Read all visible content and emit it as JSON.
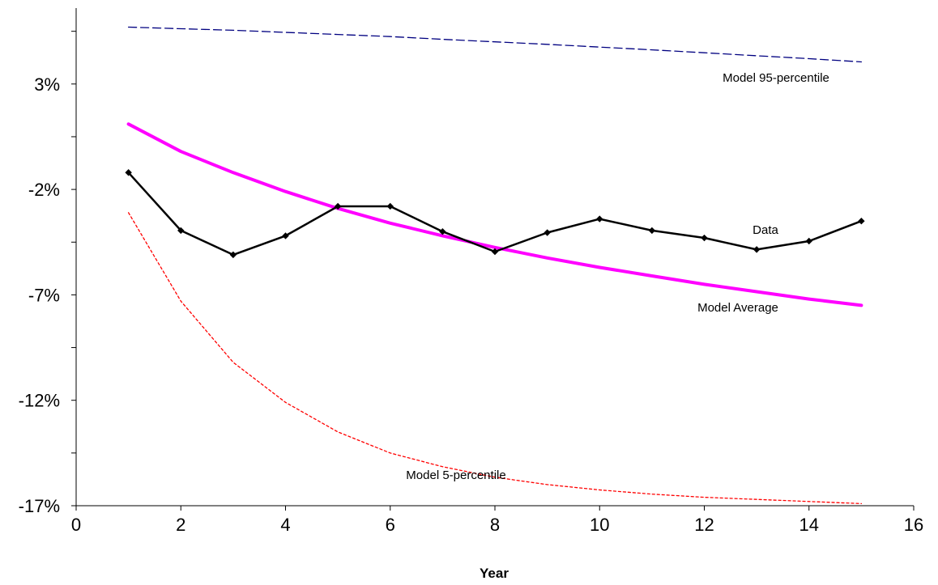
{
  "chart_data": {
    "type": "line",
    "title": "",
    "xlabel": "Year",
    "ylabel": "",
    "xlim": [
      0,
      16
    ],
    "ylim": [
      -17,
      6.6
    ],
    "x_ticks": [
      0,
      2,
      4,
      6,
      8,
      10,
      12,
      14,
      16
    ],
    "x_tick_labels": [
      "0",
      "2",
      "4",
      "6",
      "8",
      "10",
      "12",
      "14",
      "16"
    ],
    "y_ticks": [
      3,
      -2,
      -7,
      -12,
      -17
    ],
    "y_tick_labels": [
      "3%",
      "-2%",
      "-7%",
      "-12%",
      "-17%"
    ],
    "y_minor_ticks": [
      5.5,
      0.5,
      -4.5,
      -9.5,
      -14.5
    ],
    "grid": false,
    "legend": "none",
    "x": [
      1,
      2,
      3,
      4,
      5,
      6,
      7,
      8,
      9,
      10,
      11,
      12,
      13,
      14,
      15
    ],
    "series": [
      {
        "name": "Model 95-percentile",
        "color": "#000080",
        "style": "dashed",
        "values": [
          5.7,
          5.62,
          5.55,
          5.45,
          5.35,
          5.25,
          5.12,
          5.0,
          4.88,
          4.75,
          4.62,
          4.48,
          4.34,
          4.2,
          4.05
        ]
      },
      {
        "name": "Model Average",
        "color": "#ff00ff",
        "style": "solid-thick",
        "values": [
          1.1,
          -0.2,
          -1.2,
          -2.1,
          -2.9,
          -3.6,
          -4.2,
          -4.75,
          -5.25,
          -5.7,
          -6.1,
          -6.5,
          -6.85,
          -7.2,
          -7.5
        ]
      },
      {
        "name": "Data",
        "color": "#000000",
        "style": "solid-markers",
        "values": [
          -1.2,
          -3.95,
          -5.1,
          -4.2,
          -2.8,
          -2.8,
          -4.0,
          -4.95,
          -4.05,
          -3.4,
          -3.95,
          -4.3,
          -4.85,
          -4.45,
          -3.5
        ]
      },
      {
        "name": "Model 5-percentile",
        "color": "#ff0000",
        "style": "dotted",
        "values": [
          -3.1,
          -7.3,
          -10.2,
          -12.1,
          -13.5,
          -14.5,
          -15.15,
          -15.65,
          -16.0,
          -16.25,
          -16.45,
          -16.6,
          -16.7,
          -16.8,
          -16.9
        ]
      }
    ]
  }
}
